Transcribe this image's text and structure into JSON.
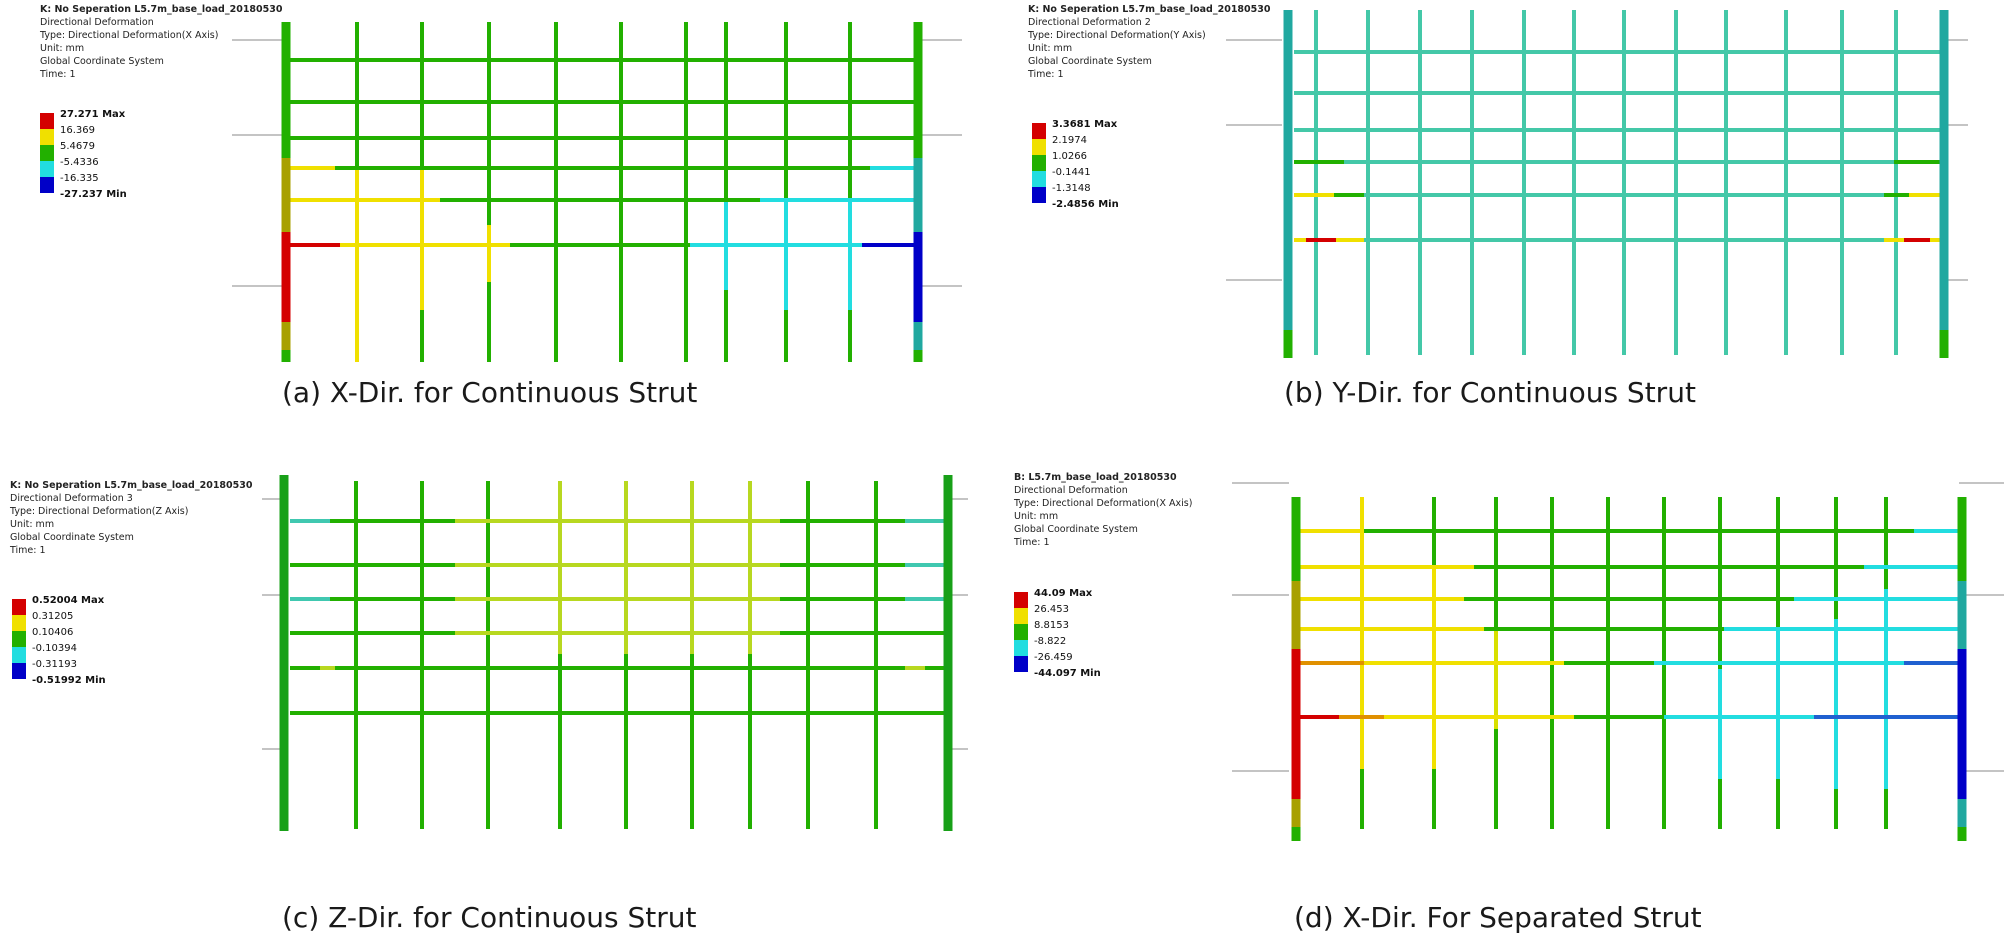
{
  "panels": [
    {
      "id": "a",
      "header": [
        "K: No Seperation  L5.7m_base_load_20180530",
        "Directional Deformation",
        "Type: Directional Deformation(X Axis)",
        "Unit: mm",
        "Global Coordinate System",
        "Time: 1"
      ],
      "legend": [
        "27.271 Max",
        "16.369",
        "5.4679",
        "-5.4336",
        "-16.335",
        "-27.237 Min"
      ],
      "caption": "(a) X-Dir. for Continuous Strut"
    },
    {
      "id": "b",
      "header": [
        "K: No Seperation  L5.7m_base_load_20180530",
        "Directional Deformation 2",
        "Type: Directional Deformation(Y Axis)",
        "Unit: mm",
        "Global Coordinate System",
        "Time: 1"
      ],
      "legend": [
        "3.3681 Max",
        "2.1974",
        "1.0266",
        "-0.1441",
        "-1.3148",
        "-2.4856 Min"
      ],
      "caption": "(b) Y-Dir. for Continuous Strut"
    },
    {
      "id": "c",
      "header": [
        "K: No Seperation  L5.7m_base_load_20180530",
        "Directional Deformation 3",
        "Type: Directional Deformation(Z Axis)",
        "Unit: mm",
        "Global Coordinate System",
        "Time: 1"
      ],
      "legend": [
        "0.52004 Max",
        "0.31205",
        "0.10406",
        "-0.10394",
        "-0.31193",
        "-0.51992 Min"
      ],
      "caption": "(c) Z-Dir. for Continuous Strut"
    },
    {
      "id": "d",
      "header": [
        "B: L5.7m_base_load_20180530",
        "Directional Deformation",
        "Type: Directional Deformation(X Axis)",
        "Unit: mm",
        "Global Coordinate System",
        "Time: 1"
      ],
      "legend": [
        "44.09 Max",
        "26.453",
        "8.8153",
        "-8.822",
        "-26.459",
        "-44.097 Min"
      ],
      "caption": "(d) X-Dir. For Separated Strut"
    }
  ],
  "colors": {
    "red": "#d40000",
    "yellow": "#f0e000",
    "green": "#22b000",
    "cyan": "#22dde0",
    "blue": "#0000c8",
    "olive": "#a8a000",
    "teal": "#20a8a0",
    "pale_teal": "#44c8a8",
    "dark_green": "#18a018"
  }
}
